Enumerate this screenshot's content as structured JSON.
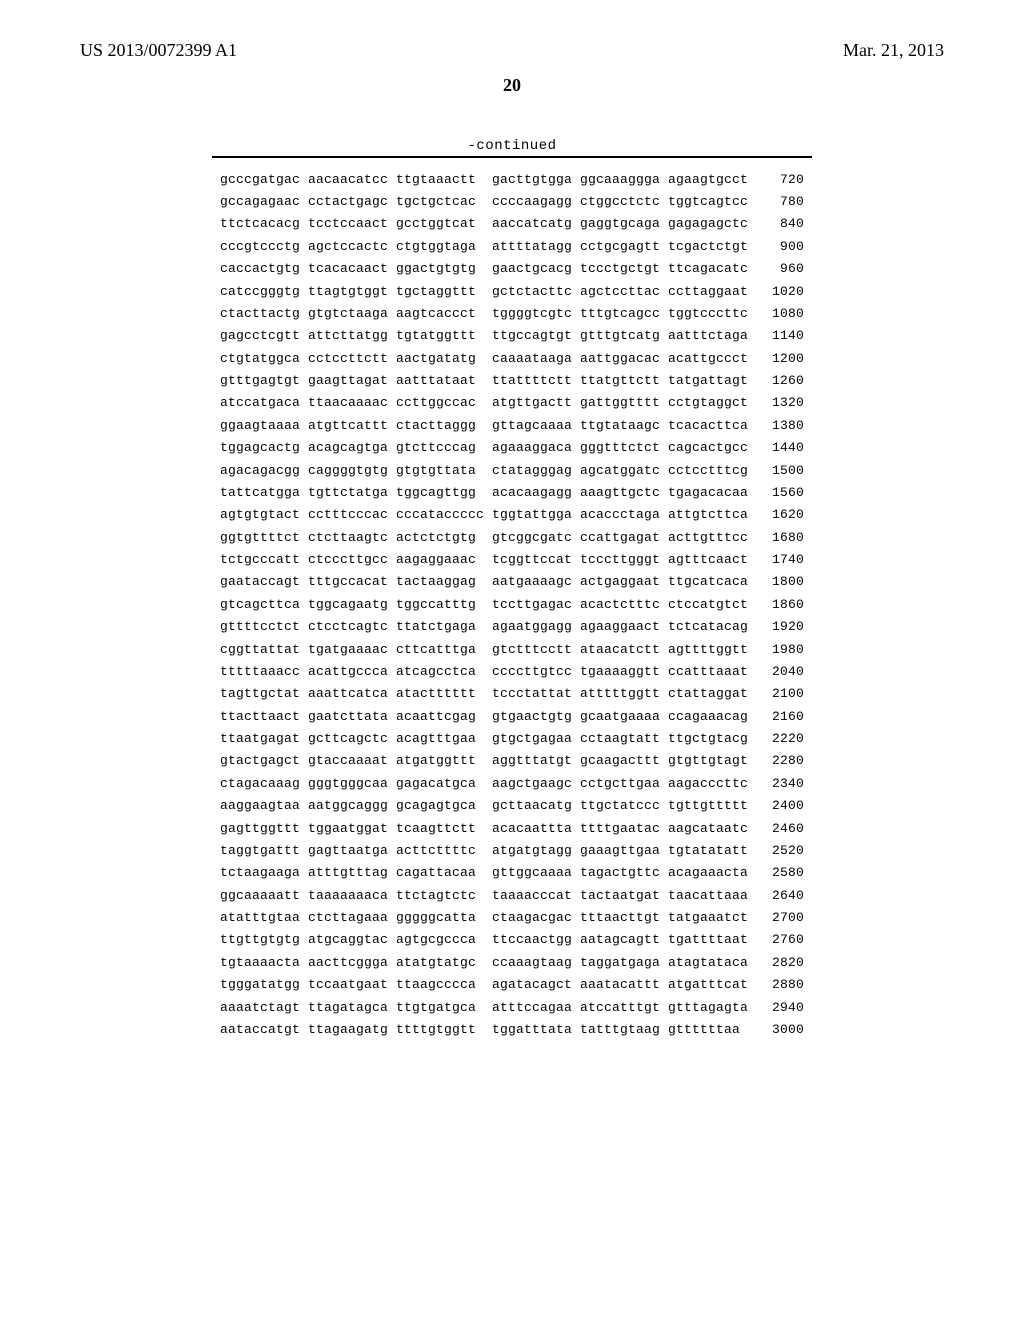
{
  "header": {
    "publication_number": "US 2013/0072399 A1",
    "publication_date": "Mar. 21, 2013"
  },
  "page_number": "20",
  "continued_label": "-continued",
  "sequence_rows": [
    {
      "cols": [
        "gcccgatgac",
        "aacaacatcc",
        "ttgtaaactt",
        "gacttgtgga",
        "ggcaaaggga",
        "agaagtgcct"
      ],
      "pos": "720"
    },
    {
      "cols": [
        "gccagagaac",
        "cctactgagc",
        "tgctgctcac",
        "ccccaagagg",
        "ctggcctctc",
        "tggtcagtcc"
      ],
      "pos": "780"
    },
    {
      "cols": [
        "ttctcacacg",
        "tcctccaact",
        "gcctggtcat",
        "aaccatcatg",
        "gaggtgcaga",
        "gagagagctc"
      ],
      "pos": "840"
    },
    {
      "cols": [
        "cccgtccctg",
        "agctccactc",
        "ctgtggtaga",
        "attttatagg",
        "cctgcgagtt",
        "tcgactctgt"
      ],
      "pos": "900"
    },
    {
      "cols": [
        "caccactgtg",
        "tcacacaact",
        "ggactgtgtg",
        "gaactgcacg",
        "tccctgctgt",
        "ttcagacatc"
      ],
      "pos": "960"
    },
    {
      "cols": [
        "catccgggtg",
        "ttagtgtggt",
        "tgctaggttt",
        "gctctacttc",
        "agctccttac",
        "ccttaggaat"
      ],
      "pos": "1020"
    },
    {
      "cols": [
        "ctacttactg",
        "gtgtctaaga",
        "aagtcaccct",
        "tggggtcgtc",
        "tttgtcagcc",
        "tggtcccttc"
      ],
      "pos": "1080"
    },
    {
      "cols": [
        "gagcctcgtt",
        "attcttatgg",
        "tgtatggttt",
        "ttgccagtgt",
        "gtttgtcatg",
        "aatttctaga"
      ],
      "pos": "1140"
    },
    {
      "cols": [
        "ctgtatggca",
        "cctccttctt",
        "aactgatatg",
        "caaaataaga",
        "aattggacac",
        "acattgccct"
      ],
      "pos": "1200"
    },
    {
      "cols": [
        "gtttgagtgt",
        "gaagttagat",
        "aatttataat",
        "ttattttctt",
        "ttatgttctt",
        "tatgattagt"
      ],
      "pos": "1260"
    },
    {
      "cols": [
        "atccatgaca",
        "ttaacaaaac",
        "ccttggccac",
        "atgttgactt",
        "gattggtttt",
        "cctgtaggct"
      ],
      "pos": "1320"
    },
    {
      "cols": [
        "ggaagtaaaa",
        "atgttcattt",
        "ctacttaggg",
        "gttagcaaaa",
        "ttgtataagc",
        "tcacacttca"
      ],
      "pos": "1380"
    },
    {
      "cols": [
        "tggagcactg",
        "acagcagtga",
        "gtcttcccag",
        "agaaaggaca",
        "gggtttctct",
        "cagcactgcc"
      ],
      "pos": "1440"
    },
    {
      "cols": [
        "agacagacgg",
        "caggggtgtg",
        "gtgtgttata",
        "ctatagggag",
        "agcatggatc",
        "cctcctttcg"
      ],
      "pos": "1500"
    },
    {
      "cols": [
        "tattcatgga",
        "tgttctatga",
        "tggcagttgg",
        "acacaagagg",
        "aaagttgctc",
        "tgagacacaa"
      ],
      "pos": "1560"
    },
    {
      "cols": [
        "agtgtgtact",
        "cctttcccac",
        "cccataccccc",
        "tggtattgga",
        "acaccctaga",
        "attgtcttca"
      ],
      "pos": "1620"
    },
    {
      "cols": [
        "ggtgttttct",
        "ctcttaagtc",
        "actctctgtg",
        "gtcggcgatc",
        "ccattgagat",
        "acttgtttcc"
      ],
      "pos": "1680"
    },
    {
      "cols": [
        "tctgcccatt",
        "ctcccttgcc",
        "aagaggaaac",
        "tcggttccat",
        "tcccttgggt",
        "agtttcaact"
      ],
      "pos": "1740"
    },
    {
      "cols": [
        "gaataccagt",
        "tttgccacat",
        "tactaaggag",
        "aatgaaaagc",
        "actgaggaat",
        "ttgcatcaca"
      ],
      "pos": "1800"
    },
    {
      "cols": [
        "gtcagcttca",
        "tggcagaatg",
        "tggccatttg",
        "tccttgagac",
        "acactctttc",
        "ctccatgtct"
      ],
      "pos": "1860"
    },
    {
      "cols": [
        "gttttcctct",
        "ctcctcagtc",
        "ttatctgaga",
        "agaatggagg",
        "agaaggaact",
        "tctcatacag"
      ],
      "pos": "1920"
    },
    {
      "cols": [
        "cggttattat",
        "tgatgaaaac",
        "cttcatttga",
        "gtctttcctt",
        "ataacatctt",
        "agttttggtt"
      ],
      "pos": "1980"
    },
    {
      "cols": [
        "tttttaaacc",
        "acattgccca",
        "atcagcctca",
        "ccccttgtcc",
        "tgaaaaggtt",
        "ccatttaaat"
      ],
      "pos": "2040"
    },
    {
      "cols": [
        "tagttgctat",
        "aaattcatca",
        "atactttttt",
        "tccctattat",
        "atttttggtt",
        "ctattaggat"
      ],
      "pos": "2100"
    },
    {
      "cols": [
        "ttacttaact",
        "gaatcttata",
        "acaattcgag",
        "gtgaactgtg",
        "gcaatgaaaa",
        "ccagaaacag"
      ],
      "pos": "2160"
    },
    {
      "cols": [
        "ttaatgagat",
        "gcttcagctc",
        "acagtttgaa",
        "gtgctgagaa",
        "cctaagtatt",
        "ttgctgtacg"
      ],
      "pos": "2220"
    },
    {
      "cols": [
        "gtactgagct",
        "gtaccaaaat",
        "atgatggttt",
        "aggtttatgt",
        "gcaagacttt",
        "gtgttgtagt"
      ],
      "pos": "2280"
    },
    {
      "cols": [
        "ctagacaaag",
        "gggtgggcaa",
        "gagacatgca",
        "aagctgaagc",
        "cctgcttgaa",
        "aagacccttc"
      ],
      "pos": "2340"
    },
    {
      "cols": [
        "aaggaagtaa",
        "aatggcaggg",
        "gcagagtgca",
        "gcttaacatg",
        "ttgctatccc",
        "tgttgttttt"
      ],
      "pos": "2400"
    },
    {
      "cols": [
        "gagttggttt",
        "tggaatggat",
        "tcaagttctt",
        "acacaattta",
        "ttttgaatac",
        "aagcataatc"
      ],
      "pos": "2460"
    },
    {
      "cols": [
        "taggtgattt",
        "gagttaatga",
        "acttcttttc",
        "atgatgtagg",
        "gaaagttgaa",
        "tgtatatatt"
      ],
      "pos": "2520"
    },
    {
      "cols": [
        "tctaagaaga",
        "atttgtttag",
        "cagattacaa",
        "gttggcaaaa",
        "tagactgttc",
        "acagaaacta"
      ],
      "pos": "2580"
    },
    {
      "cols": [
        "ggcaaaaatt",
        "taaaaaaaca",
        "ttctagtctc",
        "taaaacccat",
        "tactaatgat",
        "taacattaaa"
      ],
      "pos": "2640"
    },
    {
      "cols": [
        "atatttgtaa",
        "ctcttagaaa",
        "gggggcatta",
        "ctaagacgac",
        "tttaacttgt",
        "tatgaaatct"
      ],
      "pos": "2700"
    },
    {
      "cols": [
        "ttgttgtgtg",
        "atgcaggtac",
        "agtgcgccca",
        "ttccaactgg",
        "aatagcagtt",
        "tgattttaat"
      ],
      "pos": "2760"
    },
    {
      "cols": [
        "tgtaaaacta",
        "aacttcggga",
        "atatgtatgc",
        "ccaaagtaag",
        "taggatgaga",
        "atagtataca"
      ],
      "pos": "2820"
    },
    {
      "cols": [
        "tgggatatgg",
        "tccaatgaat",
        "ttaagcccca",
        "agatacagct",
        "aaatacattt",
        "atgatttcat"
      ],
      "pos": "2880"
    },
    {
      "cols": [
        "aaaatctagt",
        "ttagatagca",
        "ttgtgatgca",
        "atttccagaa",
        "atccatttgt",
        "gtttagagta"
      ],
      "pos": "2940"
    },
    {
      "cols": [
        "aataccatgt",
        "ttagaagatg",
        "ttttgtggtt",
        "tggatttata",
        "tatttgtaag",
        "gttttttaa"
      ],
      "pos": "3000"
    }
  ]
}
